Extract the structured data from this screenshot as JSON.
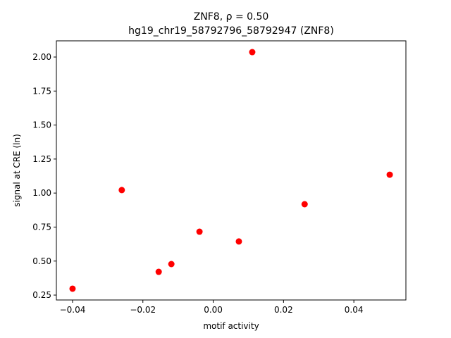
{
  "chart_data": {
    "type": "scatter",
    "title": "ZNF8, ρ = 0.50",
    "subtitle": "hg19_chr19_58792796_58792947 (ZNF8)",
    "x_label": "motif activity",
    "y_label": "signal at CRE (ln)",
    "series": [
      {
        "color": "#ff0000",
        "x": [
          -0.04,
          -0.026,
          -0.0155,
          -0.0119,
          -0.0039,
          0.0073,
          0.0111,
          0.026,
          0.0502
        ],
        "values": [
          0.297,
          1.022,
          0.421,
          0.478,
          0.716,
          0.644,
          2.036,
          0.918,
          1.135
        ]
      }
    ],
    "xlim": [
      -0.0446,
      0.0548
    ],
    "ylim": [
      0.214,
      2.119
    ],
    "xticks": [
      {
        "value": -0.04,
        "label": "−0.04"
      },
      {
        "value": -0.02,
        "label": "−0.02"
      },
      {
        "value": 0,
        "label": "0.00"
      },
      0.02,
      0.04
    ],
    "yticks": [
      0.25,
      {
        "value": 0.5,
        "label": "0.50"
      },
      0.75,
      {
        "value": 1,
        "label": "1.00"
      },
      1.25,
      {
        "value": 1.5,
        "label": "1.50"
      },
      1.75,
      {
        "value": 2,
        "label": "2.00"
      }
    ]
  }
}
